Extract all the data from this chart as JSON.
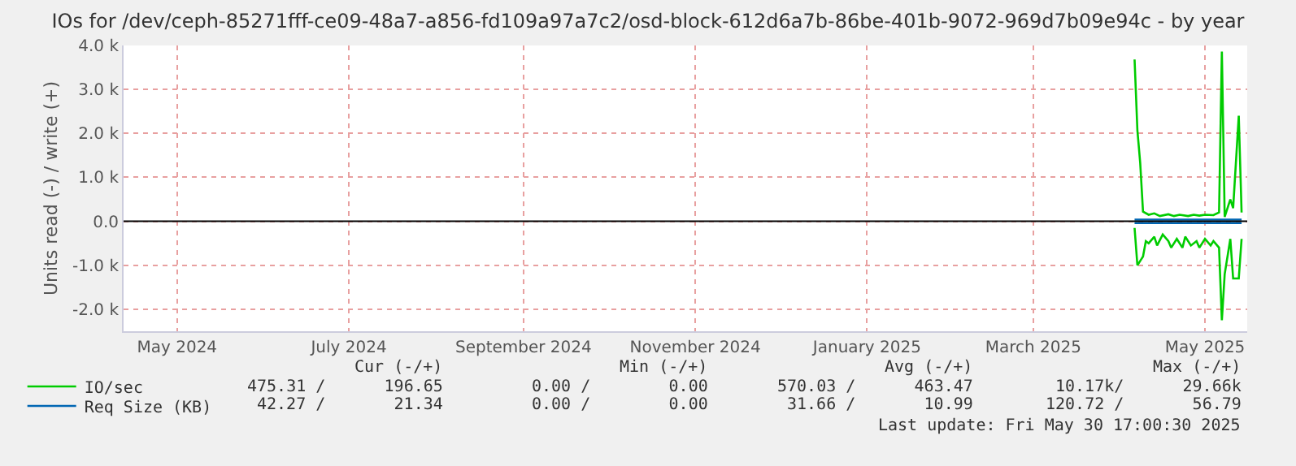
{
  "chart_data": {
    "type": "line",
    "title": "IOs for /dev/ceph-85271fff-ce09-48a7-a856-fd109a97a7c2/osd-block-612d6a7b-86be-401b-9072-969d7b09e94c - by year",
    "ylabel": "Units read (-) / write (+)",
    "xlim": [
      "2024-04-12",
      "2025-05-16"
    ],
    "xticks": [
      {
        "value": "2024-05-01",
        "label": "May 2024"
      },
      {
        "value": "2024-07-01",
        "label": "July 2024"
      },
      {
        "value": "2024-09-01",
        "label": "September 2024"
      },
      {
        "value": "2024-11-01",
        "label": "November 2024"
      },
      {
        "value": "2025-01-01",
        "label": "January 2025"
      },
      {
        "value": "2025-03-01",
        "label": "March 2025"
      },
      {
        "value": "2025-05-01",
        "label": "May 2025"
      }
    ],
    "ylim": [
      -2500,
      4000
    ],
    "yticks": [
      {
        "value": -2000,
        "label": "-2.0 k"
      },
      {
        "value": -1000,
        "label": "-1.0 k"
      },
      {
        "value": 0,
        "label": "0.0"
      },
      {
        "value": 1000,
        "label": "1.0 k"
      },
      {
        "value": 2000,
        "label": "2.0 k"
      },
      {
        "value": 3000,
        "label": "3.0 k"
      },
      {
        "value": 4000,
        "label": "4.0 k"
      }
    ],
    "grid": true,
    "legend": "bottom left",
    "line_style": "solid",
    "ref_lines": [
      {
        "axis": "y",
        "value": 0,
        "color": "#000000"
      }
    ],
    "series": [
      {
        "name": "IO/sec",
        "color": "#00cc00",
        "x": [
          "2025-04-06",
          "2025-04-07",
          "2025-04-08",
          "2025-04-09",
          "2025-04-11",
          "2025-04-13",
          "2025-04-15",
          "2025-04-18",
          "2025-04-20",
          "2025-04-22",
          "2025-04-25",
          "2025-04-27",
          "2025-04-29",
          "2025-05-01",
          "2025-05-04",
          "2025-05-06",
          "2025-05-07",
          "2025-05-08",
          "2025-05-10",
          "2025-05-11",
          "2025-05-13",
          "2025-05-14"
        ],
        "values": [
          3680,
          2070,
          1330,
          220,
          150,
          180,
          120,
          160,
          120,
          150,
          120,
          150,
          130,
          150,
          140,
          200,
          3860,
          100,
          500,
          300,
          2400,
          200
        ]
      },
      {
        "color": "#00cc00",
        "x": [
          "2025-04-06",
          "2025-04-07",
          "2025-04-08",
          "2025-04-09",
          "2025-04-10",
          "2025-04-11",
          "2025-04-13",
          "2025-04-14",
          "2025-04-16",
          "2025-04-18",
          "2025-04-19",
          "2025-04-21",
          "2025-04-23",
          "2025-04-24",
          "2025-04-26",
          "2025-04-28",
          "2025-04-29",
          "2025-05-01",
          "2025-05-03",
          "2025-05-04",
          "2025-05-06",
          "2025-05-07",
          "2025-05-08",
          "2025-05-10",
          "2025-05-11",
          "2025-05-13",
          "2025-05-14"
        ],
        "values": [
          -150,
          -1000,
          -900,
          -800,
          -450,
          -500,
          -350,
          -550,
          -300,
          -450,
          -600,
          -400,
          -600,
          -350,
          -550,
          -450,
          -600,
          -400,
          -550,
          -450,
          -600,
          -2250,
          -1200,
          -400,
          -1300,
          -1300,
          -400
        ]
      },
      {
        "name": "Req Size (KB)",
        "color": "#0066b3",
        "x": [
          "2025-04-06",
          "2025-04-20",
          "2025-05-04",
          "2025-05-14"
        ],
        "values": [
          40,
          40,
          40,
          40
        ]
      },
      {
        "color": "#0066b3",
        "x": [
          "2025-04-06",
          "2025-04-20",
          "2025-05-04",
          "2025-05-14"
        ],
        "values": [
          -40,
          -40,
          -40,
          -40
        ]
      }
    ],
    "annotations": [
      "Cur (-/+)",
      "Min (-/+)",
      "Avg (-/+)",
      "Max (-/+)",
      "475.31 /      196.65",
      "0.00 /        0.00",
      "570.03 /      463.47",
      "10.17k/      29.66k",
      "42.27 /       21.34",
      "0.00 /        0.00",
      "31.66 /       10.99",
      "120.72 /       56.79",
      "Last update: Fri May 30 17:00:30 2025"
    ]
  }
}
